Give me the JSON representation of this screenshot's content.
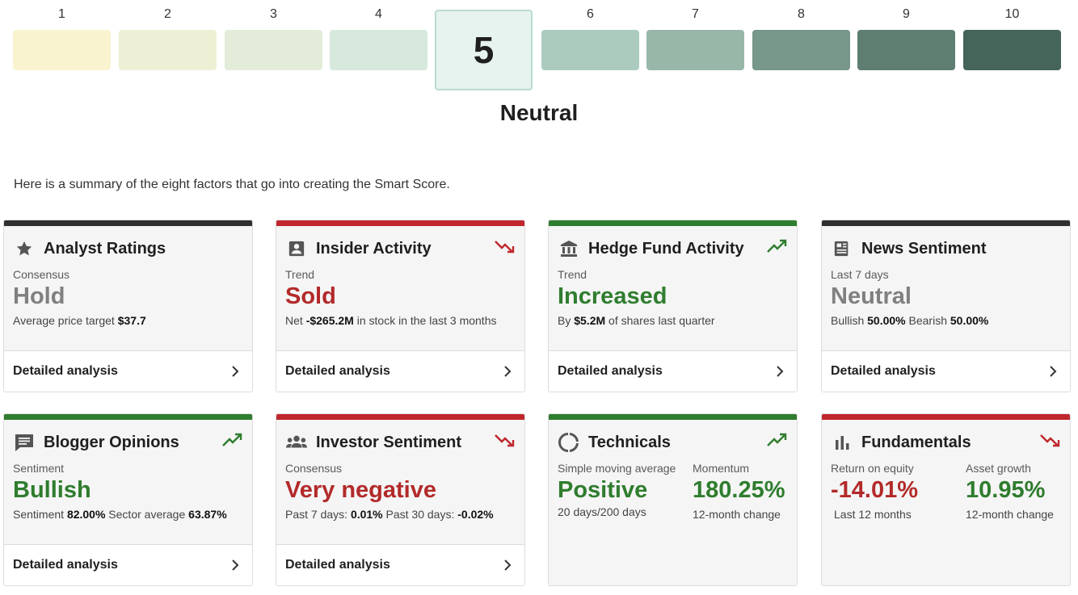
{
  "scale": {
    "items": [
      {
        "num": "1",
        "color": "#faf3d0"
      },
      {
        "num": "2",
        "color": "#eef0d5"
      },
      {
        "num": "3",
        "color": "#e2ecd8"
      },
      {
        "num": "4",
        "color": "#d7e9dc"
      },
      {
        "num": "5",
        "color": "#e7f3ee"
      },
      {
        "num": "6",
        "color": "#abcbbf"
      },
      {
        "num": "7",
        "color": "#98b7a9"
      },
      {
        "num": "8",
        "color": "#769789"
      },
      {
        "num": "9",
        "color": "#5d7e71"
      },
      {
        "num": "10",
        "color": "#45645a"
      }
    ],
    "active_value": "5",
    "active_label": "Neutral"
  },
  "summary_text": "Here is a summary of the eight factors that go into creating the Smart Score.",
  "footer_label": "Detailed analysis",
  "cards": {
    "analyst": {
      "title": "Analyst Ratings",
      "label": "Consensus",
      "value": "Hold",
      "sub_prefix": "Average price target ",
      "sub_value": "$37.7"
    },
    "insider": {
      "title": "Insider Activity",
      "label": "Trend",
      "value": "Sold",
      "sub_prefix": "Net ",
      "sub_value": "-$265.2M",
      "sub_suffix": " in stock in the last 3 months",
      "trend": "down"
    },
    "hedge": {
      "title": "Hedge Fund Activity",
      "label": "Trend",
      "value": "Increased",
      "sub_prefix": "By ",
      "sub_value": "$5.2M",
      "sub_suffix": " of shares last quarter",
      "trend": "up"
    },
    "news": {
      "title": "News Sentiment",
      "label": "Last 7 days",
      "value": "Neutral",
      "bullish_label": "Bullish ",
      "bullish_value": "50.00%",
      "bearish_label": " Bearish ",
      "bearish_value": "50.00%"
    },
    "blogger": {
      "title": "Blogger Opinions",
      "label": "Sentiment",
      "value": "Bullish",
      "sent_label": "Sentiment ",
      "sent_value": "82.00%",
      "sector_label": " Sector average ",
      "sector_value": "63.87%",
      "trend": "up"
    },
    "investor": {
      "title": "Investor Sentiment",
      "label": "Consensus",
      "value": "Very negative",
      "p7_label": "Past 7 days: ",
      "p7_value": "0.01%",
      "p30_label": " Past 30 days: ",
      "p30_value": "-0.02%",
      "trend": "down"
    },
    "technicals": {
      "title": "Technicals",
      "label_left": "Simple moving average",
      "value_left": "Positive",
      "sub_left": "20 days/200 days",
      "label_right": "Momentum",
      "value_right": "180.25%",
      "sub_right": "12-month change",
      "trend": "up"
    },
    "fundamentals": {
      "title": "Fundamentals",
      "label_left": "Return on equity",
      "value_left": "-14.01%",
      "sub_left": "Last 12 months",
      "label_right": "Asset growth",
      "value_right": "10.95%",
      "sub_right": "12-month change",
      "trend": "down"
    }
  },
  "colors": {
    "red": "#c0272d",
    "green": "#2f7d2e",
    "dark": "#2f2f2f",
    "neutral_grey": "#808080"
  },
  "icons": {
    "analyst": "star-icon",
    "insider": "person-badge-icon",
    "hedge": "bank-icon",
    "news": "newspaper-icon",
    "blogger": "chat-icon",
    "investor": "group-icon",
    "technicals": "circle-progress-icon",
    "fundamentals": "bar-chart-icon"
  }
}
